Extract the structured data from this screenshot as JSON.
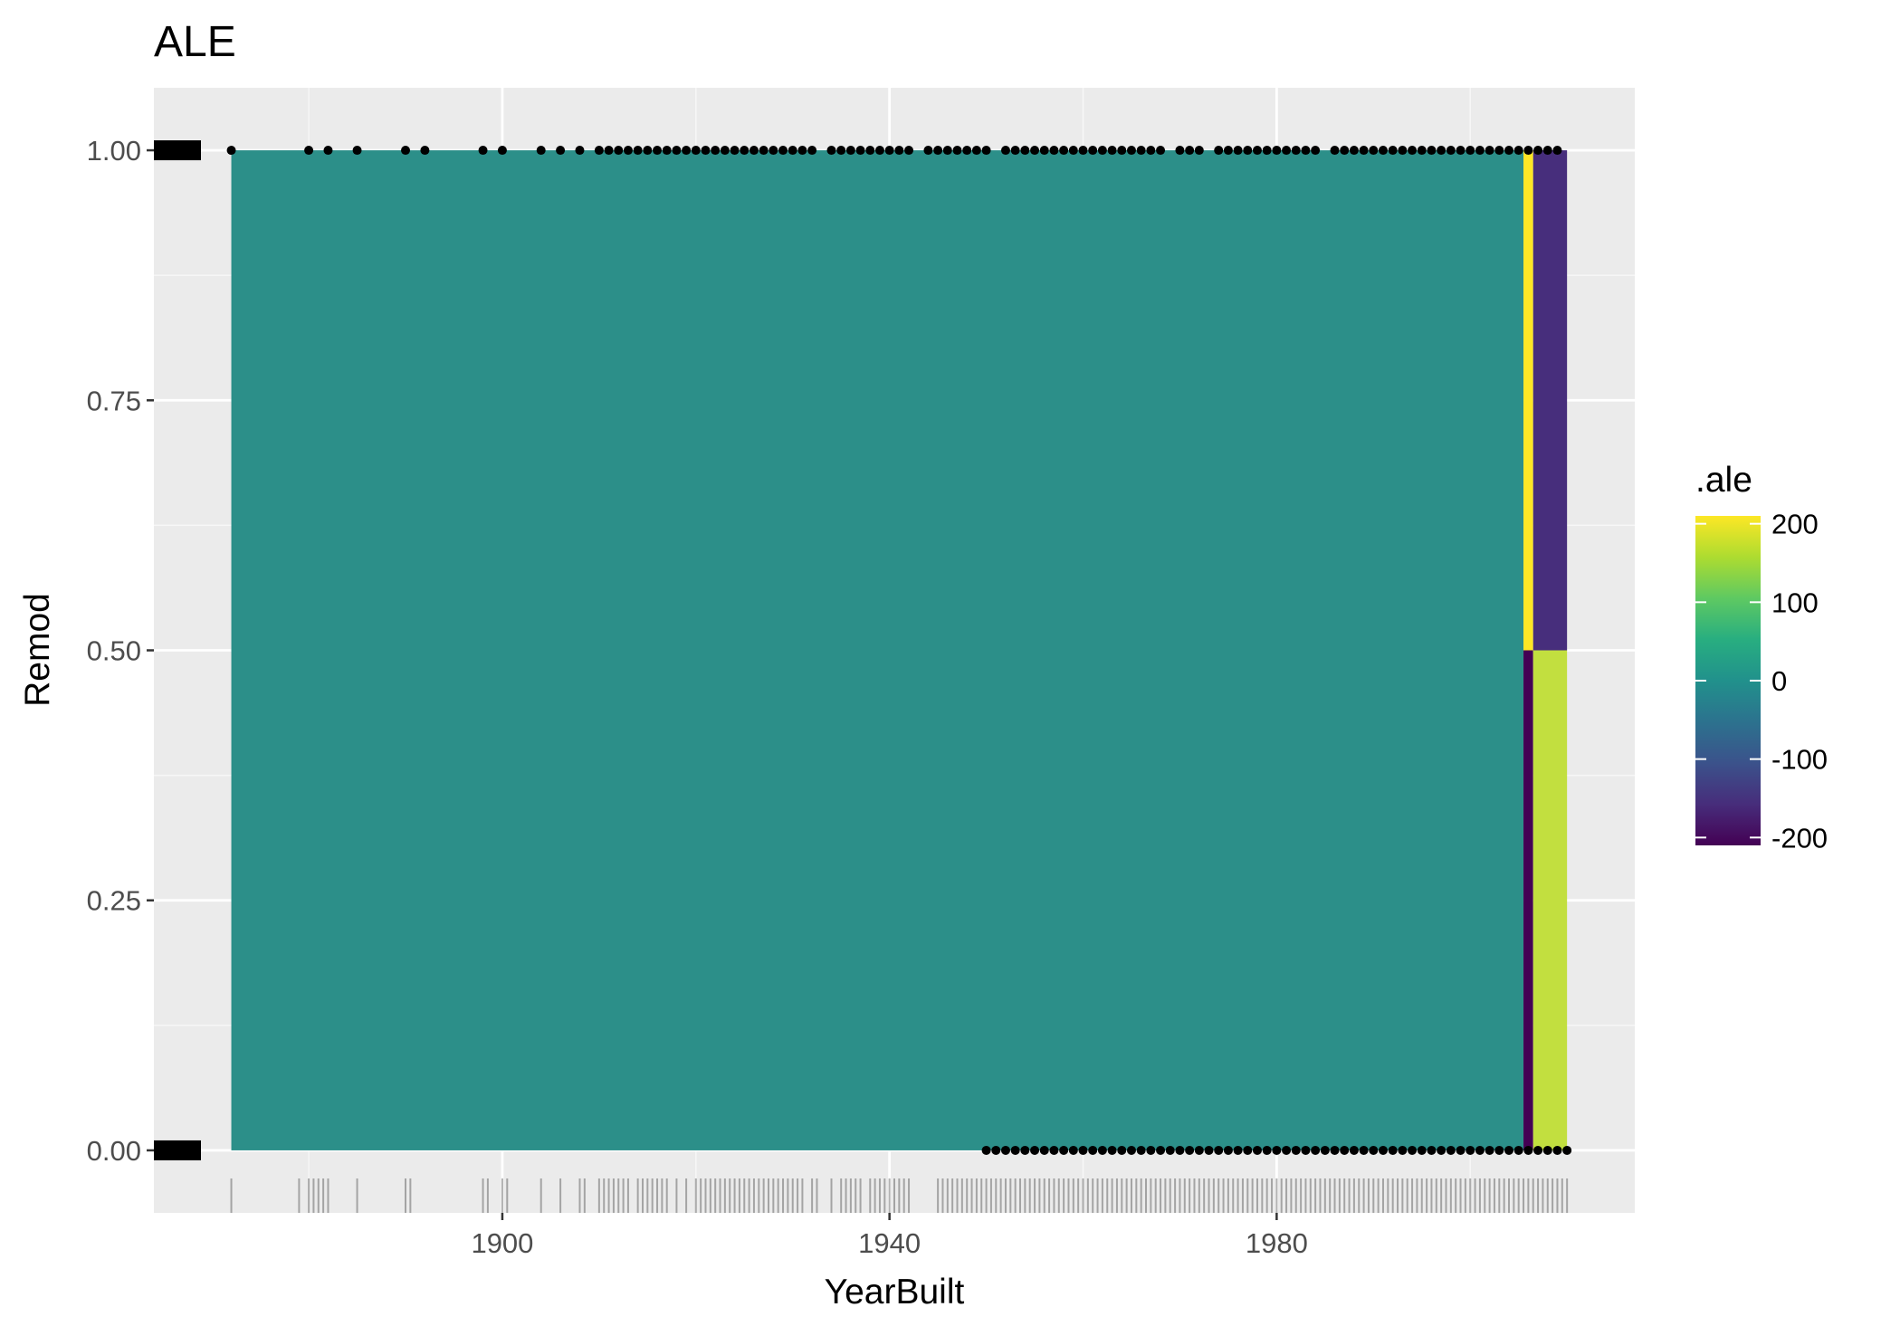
{
  "chart_data": {
    "type": "heatmap",
    "title": "ALE",
    "xlabel": "YearBuilt",
    "ylabel": "Remod",
    "xlim": [
      1864,
      2017
    ],
    "ylim": [
      -0.0625,
      1.0625
    ],
    "x_ticks": [
      1900,
      1940,
      1980
    ],
    "x_tick_labels": [
      "1900",
      "1940",
      "1980"
    ],
    "y_ticks": [
      0,
      0.25,
      0.5,
      0.75,
      1
    ],
    "y_tick_labels": [
      "0.00",
      "0.25",
      "0.50",
      "0.75",
      "1.00"
    ],
    "grid": true,
    "legend": {
      "title": ".ale",
      "position": "right",
      "colorscale": "viridis",
      "range": [
        -210,
        210
      ],
      "ticks": [
        200,
        100,
        0,
        -100,
        -200
      ],
      "tick_labels": [
        "200",
        "100",
        "0",
        "-100",
        "-200"
      ]
    },
    "tiles": [
      {
        "x0": 1872,
        "x1": 2005.5,
        "y0": 0,
        "y1": 1,
        "value": 0,
        "color": "#2c8f89"
      },
      {
        "x0": 2005.5,
        "x1": 2006.5,
        "y0": 0,
        "y1": 0.5,
        "value": -200,
        "color": "#440154"
      },
      {
        "x0": 2005.5,
        "x1": 2006.5,
        "y0": 0.5,
        "y1": 1,
        "value": 200,
        "color": "#fde725"
      },
      {
        "x0": 2006.5,
        "x1": 2010,
        "y0": 0,
        "y1": 0.5,
        "value": 170,
        "color": "#c2df3f"
      },
      {
        "x0": 2006.5,
        "x1": 2010,
        "y0": 0.5,
        "y1": 1,
        "value": -150,
        "color": "#472e7c"
      }
    ],
    "points_remod_1": [
      1872,
      1880,
      1882,
      1885,
      1890,
      1892,
      1898,
      1900,
      1904,
      1906,
      1908,
      1910,
      1911,
      1912,
      1913,
      1914,
      1915,
      1916,
      1917,
      1918,
      1919,
      1920,
      1921,
      1922,
      1923,
      1924,
      1925,
      1926,
      1927,
      1928,
      1929,
      1930,
      1931,
      1932,
      1934,
      1935,
      1936,
      1937,
      1938,
      1939,
      1940,
      1941,
      1942,
      1944,
      1945,
      1946,
      1947,
      1948,
      1949,
      1950,
      1952,
      1953,
      1954,
      1955,
      1956,
      1957,
      1958,
      1959,
      1960,
      1961,
      1962,
      1963,
      1964,
      1965,
      1966,
      1967,
      1968,
      1970,
      1971,
      1972,
      1974,
      1975,
      1976,
      1977,
      1978,
      1979,
      1980,
      1981,
      1982,
      1983,
      1984,
      1986,
      1987,
      1988,
      1989,
      1990,
      1991,
      1992,
      1993,
      1994,
      1995,
      1996,
      1997,
      1998,
      1999,
      2000,
      2001,
      2002,
      2003,
      2004,
      2005,
      2006,
      2007,
      2008,
      2009
    ],
    "points_remod_0": [
      1950,
      1951,
      1952,
      1953,
      1954,
      1955,
      1956,
      1957,
      1958,
      1959,
      1960,
      1961,
      1962,
      1963,
      1964,
      1965,
      1966,
      1967,
      1968,
      1969,
      1970,
      1971,
      1972,
      1973,
      1974,
      1975,
      1976,
      1977,
      1978,
      1979,
      1980,
      1981,
      1982,
      1983,
      1984,
      1985,
      1986,
      1987,
      1988,
      1989,
      1990,
      1991,
      1992,
      1993,
      1994,
      1995,
      1996,
      1997,
      1998,
      1999,
      2000,
      2001,
      2002,
      2003,
      2004,
      2005,
      2006,
      2007,
      2008,
      2009,
      2010
    ],
    "rug_x": [
      1872,
      1879,
      1880,
      1880.5,
      1881,
      1881.5,
      1882,
      1885,
      1890,
      1890.5,
      1898,
      1898.5,
      1900,
      1900.5,
      1904,
      1906,
      1908,
      1908.5,
      1910,
      1910.5,
      1911,
      1911.5,
      1912,
      1912.5,
      1913,
      1914,
      1914.5,
      1915,
      1915.5,
      1916,
      1916.5,
      1917,
      1918,
      1919,
      1920,
      1920.5,
      1921,
      1921.5,
      1922,
      1922.5,
      1923,
      1923.5,
      1924,
      1924.5,
      1925,
      1925.5,
      1926,
      1926.5,
      1927,
      1927.5,
      1928,
      1928.5,
      1929,
      1929.5,
      1930,
      1930.5,
      1931,
      1932,
      1932.5,
      1934,
      1935,
      1935.5,
      1936,
      1936.5,
      1937,
      1938,
      1938.5,
      1939,
      1939.5,
      1940,
      1940.5,
      1941,
      1941.5,
      1942,
      1945,
      1945.5,
      1946,
      1946.5,
      1947,
      1947.5,
      1948,
      1948.5,
      1949,
      1949.5,
      1950,
      1950.5,
      1951,
      1951.5,
      1952,
      1952.5,
      1953,
      1953.5,
      1954,
      1954.5,
      1955,
      1955.5,
      1956,
      1956.5,
      1957,
      1957.5,
      1958,
      1958.5,
      1959,
      1959.5,
      1960,
      1960.5,
      1961,
      1961.5,
      1962,
      1962.5,
      1963,
      1963.5,
      1964,
      1964.5,
      1965,
      1965.5,
      1966,
      1966.5,
      1967,
      1967.5,
      1968,
      1968.5,
      1969,
      1969.5,
      1970,
      1970.5,
      1971,
      1971.5,
      1972,
      1972.5,
      1973,
      1973.5,
      1974,
      1974.5,
      1975,
      1975.5,
      1976,
      1976.5,
      1977,
      1977.5,
      1978,
      1978.5,
      1979,
      1979.5,
      1980,
      1980.5,
      1981,
      1981.5,
      1982,
      1982.5,
      1983,
      1983.5,
      1984,
      1984.5,
      1985,
      1985.5,
      1986,
      1986.5,
      1987,
      1987.5,
      1988,
      1988.5,
      1989,
      1989.5,
      1990,
      1990.5,
      1991,
      1991.5,
      1992,
      1992.5,
      1993,
      1993.5,
      1994,
      1994.5,
      1995,
      1995.5,
      1996,
      1996.5,
      1997,
      1997.5,
      1998,
      1998.5,
      1999,
      1999.5,
      2000,
      2000.5,
      2001,
      2001.5,
      2002,
      2002.5,
      2003,
      2003.5,
      2004,
      2004.5,
      2005,
      2005.5,
      2006,
      2006.5,
      2007,
      2007.5,
      2008,
      2008.5,
      2009,
      2009.5,
      2010
    ]
  }
}
